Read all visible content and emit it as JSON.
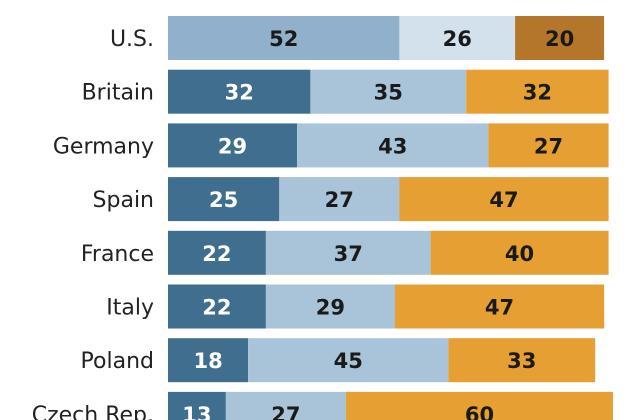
{
  "chart_data": {
    "type": "bar",
    "orientation": "horizontal",
    "stacked": true,
    "categories": [
      "U.S.",
      "Britain",
      "Germany",
      "Spain",
      "France",
      "Italy",
      "Poland",
      "Czech Rep."
    ],
    "series": [
      {
        "values": [
          52,
          32,
          29,
          25,
          22,
          22,
          18,
          13
        ]
      },
      {
        "values": [
          26,
          35,
          43,
          27,
          37,
          29,
          45,
          27
        ]
      },
      {
        "values": [
          20,
          32,
          27,
          47,
          40,
          47,
          33,
          60
        ]
      }
    ],
    "colors": {
      "first": "#3f6e8e",
      "second": "#a9c3d8",
      "third": "#e59f33",
      "us_first": "#90b0cb",
      "us_second": "#d3e1ec",
      "us_third": "#b3762a",
      "label_on_dark": "#ffffff",
      "label_on_light": "#1a1a1a"
    },
    "xlim": [
      0,
      100
    ],
    "grid": false,
    "legend": "none"
  }
}
